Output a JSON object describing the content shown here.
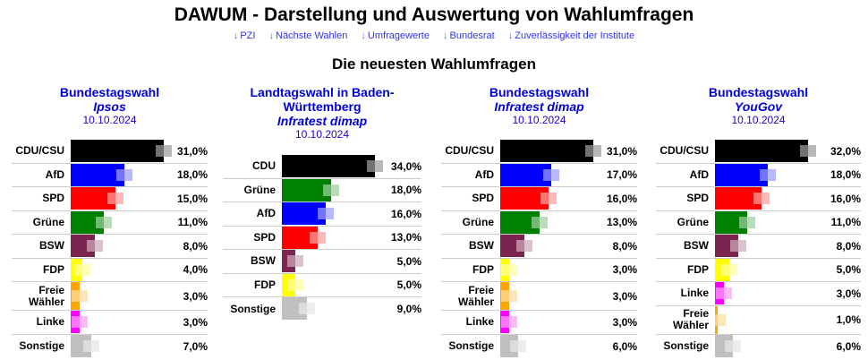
{
  "header": {
    "title": "DAWUM - Darstellung und Auswertung von Wahlumfragen",
    "nav_links": [
      {
        "arrow": "↓",
        "label": "PZI"
      },
      {
        "arrow": "↓",
        "label": "Nächste Wahlen"
      },
      {
        "arrow": "↓",
        "label": "Umfragewerte"
      },
      {
        "arrow": "↓",
        "label": "Bundesrat"
      },
      {
        "arrow": "↓",
        "label": "Zuverlässigkeit der Institute"
      }
    ],
    "subtitle": "Die neuesten Wahlumfragen"
  },
  "party_colors": {
    "CDU/CSU": "#000000",
    "CDU": "#000000",
    "AfD": "#0000ff",
    "SPD": "#ff0000",
    "Grüne": "#008000",
    "BSW": "#7b2450",
    "FDP": "#ffff00",
    "Freie Wähler": "#ffa500",
    "Linke": "#ff00ff",
    "Sonstige": "#c0c0c0"
  },
  "chart_data": [
    {
      "type": "bar",
      "election": "Bundestagswahl",
      "institute": "Ipsos",
      "date": "10.10.2024",
      "categories": [
        "CDU/CSU",
        "AfD",
        "SPD",
        "Grüne",
        "BSW",
        "FDP",
        "Freie Wähler",
        "Linke",
        "Sonstige"
      ],
      "labels": [
        "CDU/CSU",
        "AfD",
        "SPD",
        "Grüne",
        "BSW",
        "FDP",
        "Freie\nWähler",
        "Linke",
        "Sonstige"
      ],
      "values": [
        31.0,
        18.0,
        15.0,
        11.0,
        8.0,
        4.0,
        3.0,
        3.0,
        7.0
      ],
      "value_labels": [
        "31,0%",
        "18,0%",
        "15,0%",
        "11,0%",
        "8,0%",
        "4,0%",
        "3,0%",
        "3,0%",
        "7,0%"
      ],
      "unit": "%"
    },
    {
      "type": "bar",
      "election": "Landtagswahl in Baden-Württemberg",
      "institute": "Infratest dimap",
      "date": "10.10.2024",
      "categories": [
        "CDU",
        "Grüne",
        "AfD",
        "SPD",
        "BSW",
        "FDP",
        "Sonstige"
      ],
      "labels": [
        "CDU",
        "Grüne",
        "AfD",
        "SPD",
        "BSW",
        "FDP",
        "Sonstige"
      ],
      "values": [
        34.0,
        18.0,
        16.0,
        13.0,
        5.0,
        5.0,
        9.0
      ],
      "value_labels": [
        "34,0%",
        "18,0%",
        "16,0%",
        "13,0%",
        "5,0%",
        "5,0%",
        "9,0%"
      ],
      "unit": "%"
    },
    {
      "type": "bar",
      "election": "Bundestagswahl",
      "institute": "Infratest dimap",
      "date": "10.10.2024",
      "categories": [
        "CDU/CSU",
        "AfD",
        "SPD",
        "Grüne",
        "BSW",
        "FDP",
        "Freie Wähler",
        "Linke",
        "Sonstige"
      ],
      "labels": [
        "CDU/CSU",
        "AfD",
        "SPD",
        "Grüne",
        "BSW",
        "FDP",
        "Freie\nWähler",
        "Linke",
        "Sonstige"
      ],
      "values": [
        31.0,
        17.0,
        16.0,
        13.0,
        8.0,
        3.0,
        3.0,
        3.0,
        6.0
      ],
      "value_labels": [
        "31,0%",
        "17,0%",
        "16,0%",
        "13,0%",
        "8,0%",
        "3,0%",
        "3,0%",
        "3,0%",
        "6,0%"
      ],
      "unit": "%"
    },
    {
      "type": "bar",
      "election": "Bundestagswahl",
      "institute": "YouGov",
      "date": "10.10.2024",
      "categories": [
        "CDU/CSU",
        "AfD",
        "SPD",
        "Grüne",
        "BSW",
        "FDP",
        "Linke",
        "Freie Wähler",
        "Sonstige"
      ],
      "labels": [
        "CDU/CSU",
        "AfD",
        "SPD",
        "Grüne",
        "BSW",
        "FDP",
        "Linke",
        "Freie\nWähler",
        "Sonstige"
      ],
      "values": [
        32.0,
        18.0,
        16.0,
        11.0,
        8.0,
        5.0,
        3.0,
        1.0,
        6.0
      ],
      "value_labels": [
        "32,0%",
        "18,0%",
        "16,0%",
        "11,0%",
        "8,0%",
        "5,0%",
        "3,0%",
        "1,0%",
        "6,0%"
      ],
      "unit": "%"
    }
  ]
}
